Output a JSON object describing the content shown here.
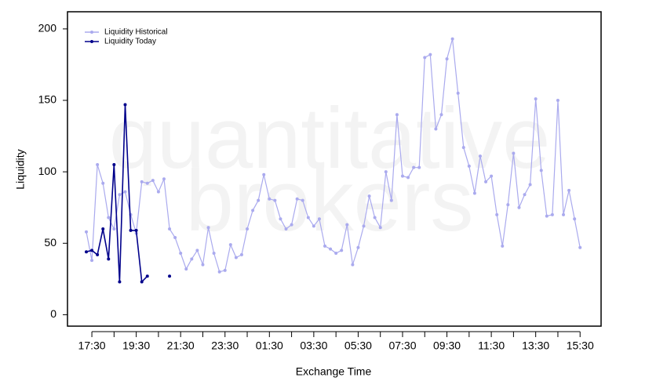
{
  "chart_data": {
    "type": "line",
    "watermark": [
      "quantitative",
      "brokers"
    ],
    "xlabel": "Exchange Time",
    "ylabel": "Liquidity",
    "categories": [
      null,
      "17:30",
      null,
      null,
      null,
      null,
      null,
      null,
      null,
      "19:30",
      null,
      null,
      null,
      null,
      null,
      null,
      null,
      "21:30",
      null,
      null,
      null,
      null,
      null,
      null,
      null,
      "23:30",
      null,
      null,
      null,
      null,
      null,
      null,
      null,
      "01:30",
      null,
      null,
      null,
      null,
      null,
      null,
      null,
      "03:30",
      null,
      null,
      null,
      null,
      null,
      null,
      null,
      "05:30",
      null,
      null,
      null,
      null,
      null,
      null,
      null,
      "07:30",
      null,
      null,
      null,
      null,
      null,
      null,
      null,
      "09:30",
      null,
      null,
      null,
      null,
      null,
      null,
      null,
      "11:30",
      null,
      null,
      null,
      null,
      null,
      null,
      null,
      "13:30",
      null,
      null,
      null,
      null,
      null,
      null,
      null,
      "15:30"
    ],
    "series": [
      {
        "name": "Liquidity Historical",
        "color": "#aaaaee",
        "values": [
          58,
          38,
          105,
          92,
          68,
          60,
          84,
          86,
          70,
          57,
          93,
          92,
          94,
          86,
          95,
          60,
          54,
          43,
          32,
          39,
          45,
          35,
          61,
          43,
          30,
          31,
          49,
          40,
          42,
          60,
          73,
          80,
          98,
          81,
          80,
          67,
          60,
          63,
          81,
          80,
          68,
          62,
          67,
          48,
          46,
          43,
          45,
          63,
          35,
          47,
          62,
          83,
          68,
          61,
          100,
          80,
          140,
          97,
          96,
          103,
          103,
          180,
          182,
          130,
          140,
          179,
          193,
          155,
          117,
          104,
          85,
          111,
          93,
          97,
          70,
          48,
          77,
          113,
          75,
          84,
          91,
          151,
          101,
          69,
          70,
          150,
          70,
          87,
          67,
          47
        ]
      },
      {
        "name": "Liquidity Today",
        "color": "#00008b",
        "values": [
          44,
          45,
          42,
          60,
          39,
          105,
          23,
          147,
          59,
          59,
          23,
          27,
          null,
          null,
          null,
          27,
          null,
          null,
          null,
          null,
          null,
          null,
          null,
          null,
          null,
          null,
          null,
          null,
          null,
          null,
          null,
          null,
          null,
          null,
          null,
          null,
          null,
          null,
          null,
          null,
          null,
          null,
          null,
          null,
          null,
          null,
          null,
          null,
          null,
          null,
          null,
          null,
          null,
          null,
          null,
          null,
          null,
          null,
          null,
          null,
          null,
          null,
          null,
          null,
          null,
          null,
          null,
          null,
          null,
          null,
          null,
          null,
          null,
          null,
          null,
          null,
          null,
          null,
          null,
          null,
          null,
          null,
          null,
          null,
          null,
          null,
          null,
          null,
          null,
          null
        ]
      }
    ],
    "ylim": [
      -8,
      212
    ],
    "yticks": [
      0,
      50,
      100,
      150,
      200
    ],
    "legend": "upper left"
  }
}
